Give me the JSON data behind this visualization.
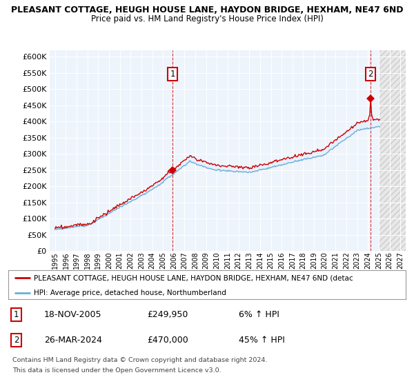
{
  "title_line1": "PLEASANT COTTAGE, HEUGH HOUSE LANE, HAYDON BRIDGE, HEXHAM, NE47 6ND",
  "title_line2": "Price paid vs. HM Land Registry's House Price Index (HPI)",
  "ytick_values": [
    0,
    50000,
    100000,
    150000,
    200000,
    250000,
    300000,
    350000,
    400000,
    450000,
    500000,
    550000,
    600000
  ],
  "xlim_start": 1994.5,
  "xlim_end": 2027.5,
  "ylim": [
    0,
    620000
  ],
  "sale1_year": 2005.88,
  "sale1_price": 249950,
  "sale1_label": "1",
  "sale1_date": "18-NOV-2005",
  "sale1_price_str": "£249,950",
  "sale1_pct": "6% ↑ HPI",
  "sale2_year": 2024.23,
  "sale2_price": 470000,
  "sale2_label": "2",
  "sale2_date": "26-MAR-2024",
  "sale2_price_str": "£470,000",
  "sale2_pct": "45% ↑ HPI",
  "hpi_color": "#6baed6",
  "price_color": "#cc0000",
  "fill_color": "#ddeeff",
  "marker_color": "#cc0000",
  "legend_label1": "PLEASANT COTTAGE, HEUGH HOUSE LANE, HAYDON BRIDGE, HEXHAM, NE47 6ND (detac",
  "legend_label2": "HPI: Average price, detached house, Northumberland",
  "footnote1": "Contains HM Land Registry data © Crown copyright and database right 2024.",
  "footnote2": "This data is licensed under the Open Government Licence v3.0.",
  "background_color": "#ffffff",
  "plot_bg_color": "#eef4fb",
  "grid_color": "#ffffff",
  "hatch_color": "#e0e0e0",
  "future_start": 2025.0
}
